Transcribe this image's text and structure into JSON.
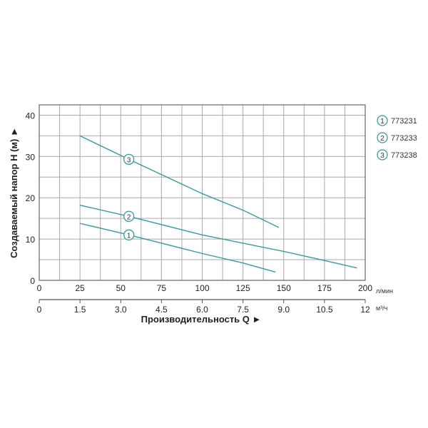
{
  "chart_data": {
    "type": "line",
    "ylabel": "Создаваемый напор H (м) ►",
    "xlabel": "Производительность Q ►",
    "x_unit": "л/мин",
    "x2_unit": "м³/ч",
    "xlim": [
      0,
      200
    ],
    "ylim": [
      0,
      42.5
    ],
    "grid": true,
    "x_ticks": [
      "0",
      "25",
      "50",
      "75",
      "100",
      "125",
      "150",
      "175",
      "200"
    ],
    "x_tick_values": [
      0,
      25,
      50,
      75,
      100,
      125,
      150,
      175,
      200
    ],
    "x2_ticks": [
      "0",
      "1.5",
      "3.0",
      "4.5",
      "6.0",
      "7.5",
      "9.0",
      "10.5",
      "12"
    ],
    "y_ticks": [
      "0",
      "10",
      "20",
      "30",
      "40"
    ],
    "y_tick_values": [
      0,
      10,
      20,
      30,
      40
    ],
    "line_color": "#3a9a9c",
    "legend_position": "right",
    "series": [
      {
        "name": "773231",
        "marker": "1",
        "x": [
          25,
          55,
          100,
          125,
          145
        ],
        "y": [
          13.8,
          11,
          6.5,
          4.2,
          2
        ],
        "label_at": 55
      },
      {
        "name": "773233",
        "marker": "2",
        "x": [
          25,
          55,
          100,
          150,
          175,
          195
        ],
        "y": [
          18.2,
          15.5,
          11,
          7,
          4.8,
          3
        ],
        "label_at": 55
      },
      {
        "name": "773238",
        "marker": "3",
        "x": [
          25,
          55,
          100,
          125,
          147
        ],
        "y": [
          35,
          29.3,
          21,
          17,
          12.8
        ],
        "label_at": 55
      }
    ]
  }
}
